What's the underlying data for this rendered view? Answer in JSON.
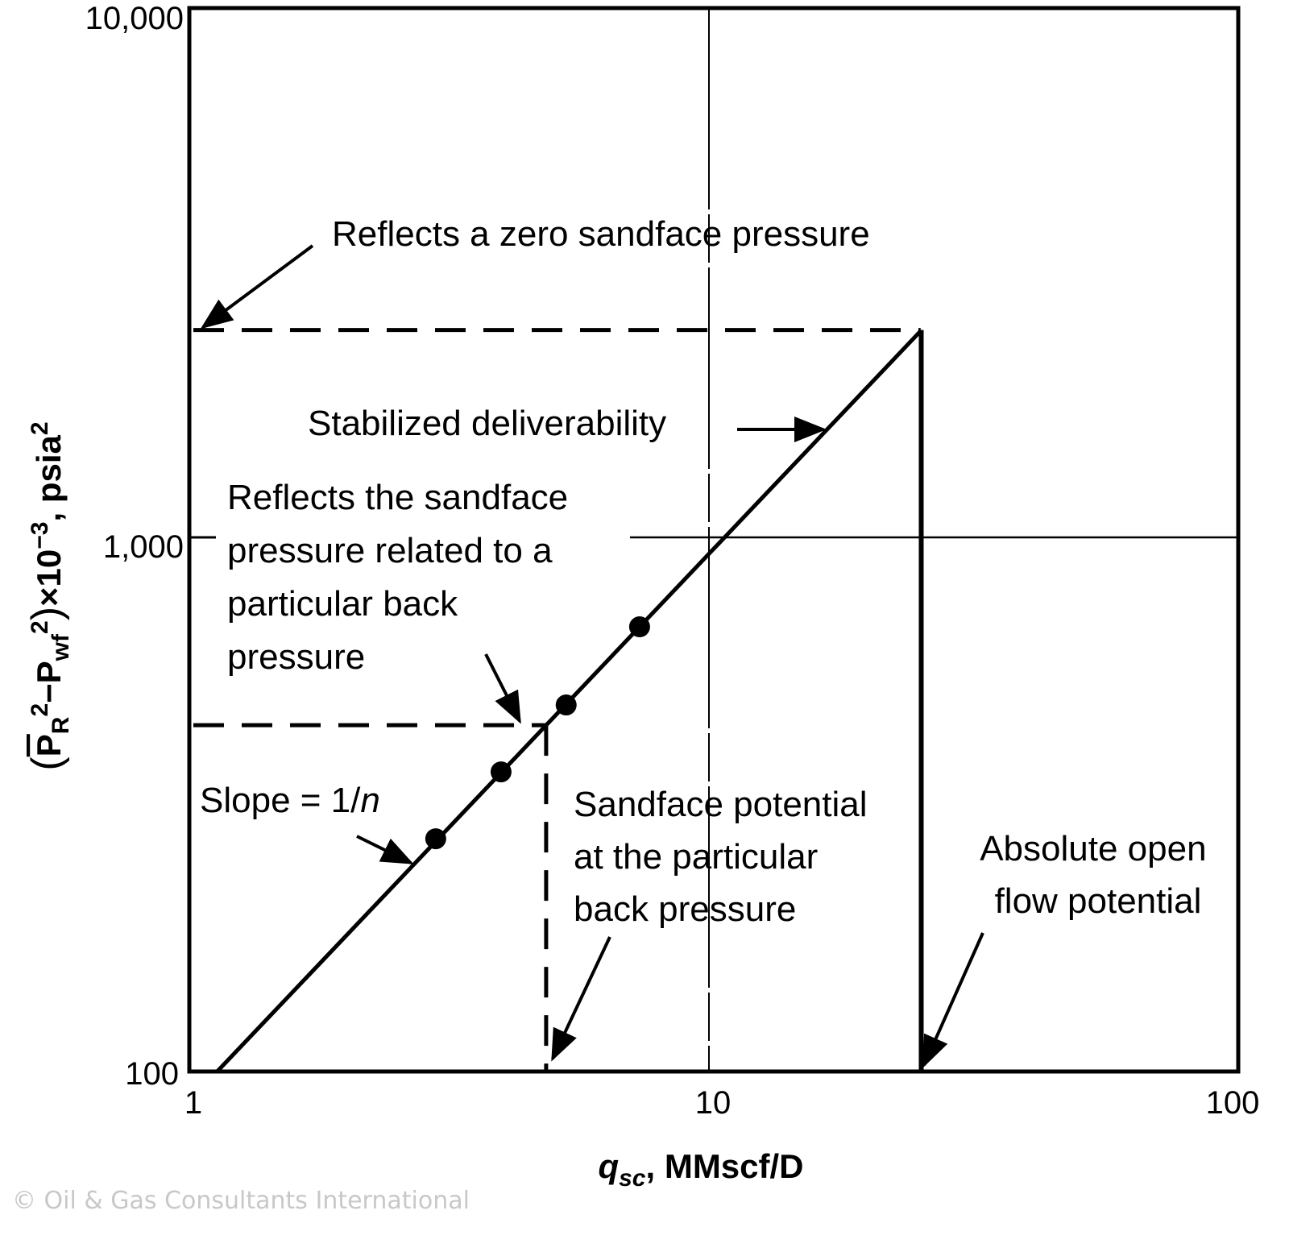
{
  "chart_data": {
    "type": "line",
    "scale": "log-log",
    "xlabel": {
      "q": "q",
      "sub": "sc",
      "rest": ", MMscf/D"
    },
    "ylabel": {
      "open": "(",
      "p1": "P",
      "sub1": "R",
      "sup1": "2",
      "minus": "−P",
      "sub2": "wf",
      "sup2": "2",
      "close": ")",
      "times": "×10",
      "exp": "−3",
      "unit": ", psia",
      "unitsup": "2"
    },
    "xlim": [
      1,
      100
    ],
    "ylim": [
      100,
      10000
    ],
    "x_ticks": [
      {
        "value": 1,
        "label": "1"
      },
      {
        "value": 10,
        "label": "10"
      },
      {
        "value": 100,
        "label": "100"
      }
    ],
    "y_ticks": [
      {
        "value": 100,
        "label": "100"
      },
      {
        "value": 1000,
        "label": "1,000"
      },
      {
        "value": 10000,
        "label": "10,000"
      }
    ],
    "series": [
      {
        "name": "Stabilized deliverability",
        "kind": "line",
        "x": [
          1.13,
          24.8
        ],
        "y": [
          100,
          2470
        ]
      },
      {
        "name": "Test points",
        "kind": "scatter",
        "x": [
          2.95,
          3.93,
          5.23,
          7.22
        ],
        "y": [
          274,
          366,
          489,
          686
        ]
      }
    ],
    "reference_lines": {
      "zero_sandface_pressure_y": 2480,
      "particular_back_pressure_y": 448,
      "sandface_potential_x": 4.79,
      "absolute_open_flow_x": 24.6
    },
    "annotations": {
      "zero_sandface": "Reflects a zero sandface pressure",
      "stabilized": "Stabilized deliverability",
      "back_pressure": [
        "Reflects the sandface",
        "pressure related to a",
        "particular  back",
        "pressure"
      ],
      "slope": {
        "prefix": "Slope  =  1/",
        "n": "n"
      },
      "sandface_potential": [
        "Sandface potential",
        "at the particular",
        "back pressure"
      ],
      "aof": [
        "Absolute open",
        "flow potential"
      ]
    }
  },
  "watermark": "© Oil & Gas Consultants International"
}
